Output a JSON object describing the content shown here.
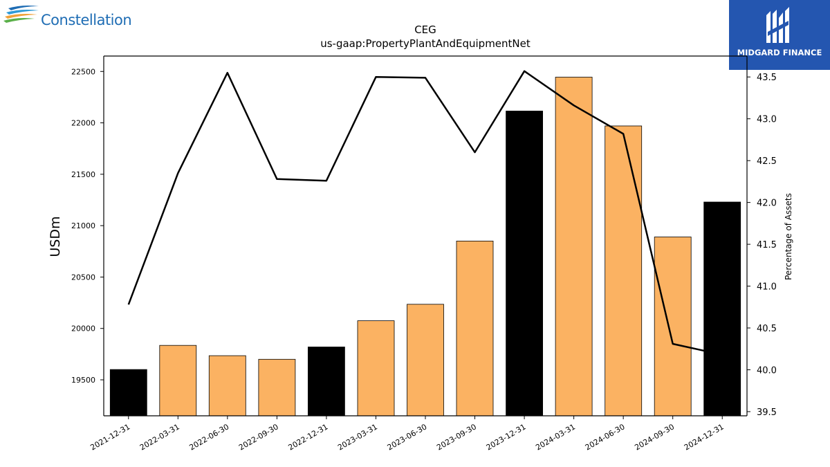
{
  "brand_left": {
    "name": "Constellation"
  },
  "brand_right": {
    "name": "MIDGARD FINANCE"
  },
  "chart_data": {
    "type": "bar",
    "title": "CEG",
    "subtitle": "us-gaap:PropertyPlantAndEquipmentNet",
    "ylabel": "USDm",
    "y2label": "Percentage of Assets",
    "categories": [
      "2021-12-31",
      "2022-03-31",
      "2022-06-30",
      "2022-09-30",
      "2022-12-31",
      "2023-03-31",
      "2023-06-30",
      "2023-09-30",
      "2023-12-31",
      "2024-03-31",
      "2024-06-30",
      "2024-09-30",
      "2024-12-31"
    ],
    "values": [
      19600,
      19835,
      19735,
      19700,
      19820,
      20075,
      20235,
      20850,
      22115,
      22445,
      21970,
      20890,
      21230
    ],
    "bar_colors": [
      "#000000",
      "#fbb262",
      "#fbb262",
      "#fbb262",
      "#000000",
      "#fbb262",
      "#fbb262",
      "#fbb262",
      "#000000",
      "#fbb262",
      "#fbb262",
      "#fbb262",
      "#000000"
    ],
    "ylim": [
      19150,
      22650
    ],
    "yticks": [
      19500,
      20000,
      20500,
      21000,
      21500,
      22000,
      22500
    ],
    "line_series": {
      "values": [
        40.78,
        42.35,
        43.55,
        42.28,
        42.26,
        43.5,
        43.49,
        42.6,
        43.57,
        43.16,
        42.82,
        40.31,
        40.18
      ]
    },
    "y2lim": [
      39.45,
      43.75
    ],
    "y2ticks": [
      "39.5",
      "40.0",
      "40.5",
      "41.0",
      "41.5",
      "42.0",
      "42.5",
      "43.0",
      "43.5"
    ],
    "grid": false,
    "legend": "none"
  }
}
